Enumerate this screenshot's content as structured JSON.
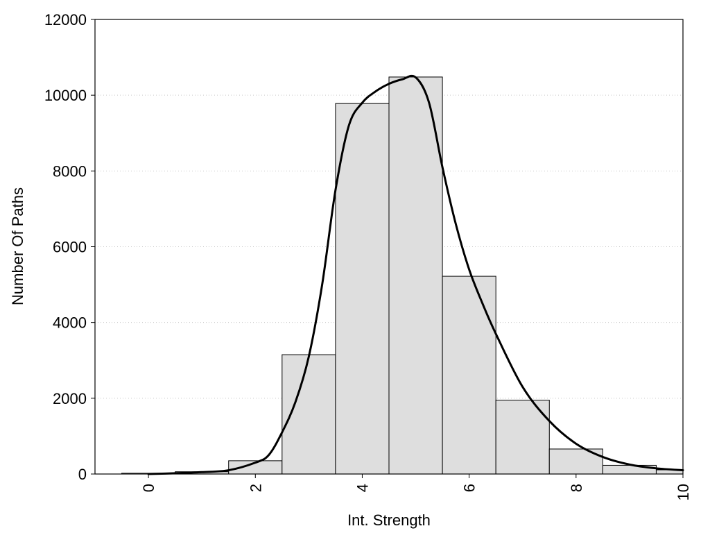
{
  "chart_data": {
    "type": "bar",
    "title": "",
    "xlabel": "Int. Strength",
    "ylabel": "Number Of Paths",
    "xlim": [
      -1,
      10
    ],
    "ylim": [
      0,
      12000
    ],
    "x_ticks": [
      0,
      2,
      4,
      6,
      8,
      10
    ],
    "y_ticks": [
      0,
      2000,
      4000,
      6000,
      8000,
      10000,
      12000
    ],
    "grid": "horizontal dotted",
    "legend": "none",
    "bar_width": 1,
    "colors": {
      "bar_fill": "#dedede",
      "bar_stroke": "#000000",
      "curve": "#000000",
      "grid": "#c8c8c8"
    },
    "bars": {
      "x": [
        0,
        1,
        2,
        3,
        4,
        5,
        6,
        7,
        8,
        9,
        10
      ],
      "values": [
        20,
        60,
        350,
        3150,
        9780,
        10480,
        5220,
        1950,
        660,
        230,
        110
      ]
    },
    "curve": {
      "x": [
        0,
        0.5,
        1,
        1.5,
        2,
        2.25,
        2.5,
        2.75,
        3,
        3.25,
        3.5,
        3.75,
        4,
        4.25,
        4.5,
        4.75,
        5,
        5.25,
        5.5,
        5.75,
        6,
        6.25,
        6.5,
        7,
        7.5,
        8,
        8.5,
        9,
        9.5,
        10
      ],
      "y": [
        0,
        20,
        50,
        100,
        300,
        500,
        1100,
        1900,
        3100,
        5000,
        7500,
        9200,
        9800,
        10100,
        10300,
        10420,
        10470,
        9800,
        8100,
        6600,
        5400,
        4500,
        3700,
        2300,
        1400,
        800,
        450,
        250,
        150,
        100
      ]
    }
  }
}
